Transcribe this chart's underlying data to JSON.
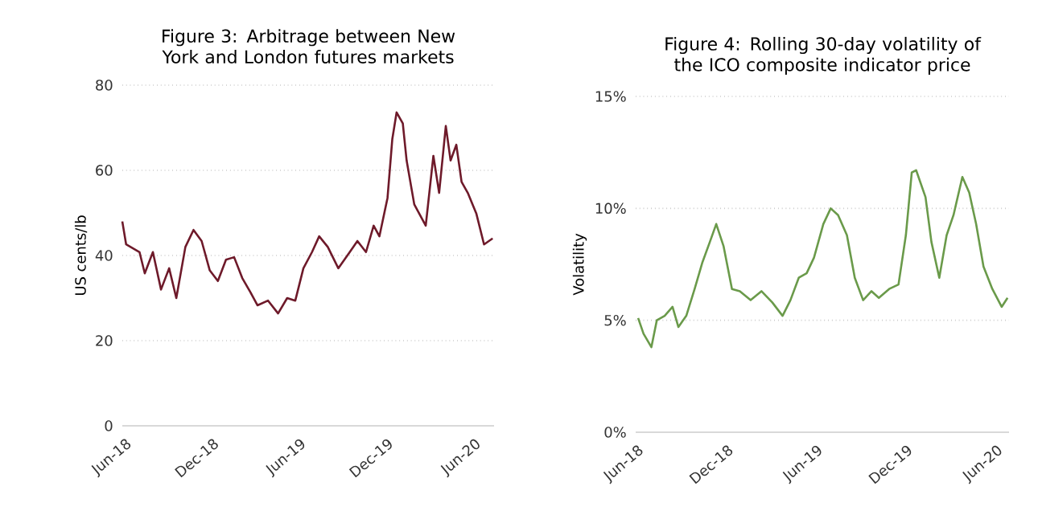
{
  "chart_data": [
    {
      "type": "line",
      "title": "Figure 3:  Arbitrage between New York and London futures markets",
      "ylabel": "US cents/lb",
      "xlim": [
        "2018-05-24",
        "2020-07-10"
      ],
      "ylim": [
        0,
        80
      ],
      "yticks": [
        0,
        20,
        40,
        60,
        80
      ],
      "xticks": [
        {
          "value": "2018-06-01",
          "label": "Jun-18"
        },
        {
          "value": "2018-12-01",
          "label": "Dec-18"
        },
        {
          "value": "2019-06-01",
          "label": "Jun-19"
        },
        {
          "value": "2019-12-01",
          "label": "Dec-19"
        },
        {
          "value": "2020-06-01",
          "label": "Jun-20"
        }
      ],
      "grid": "y",
      "series": [
        {
          "color": "#6e1a2a",
          "x": [
            "2018-05-24",
            "2018-06-01",
            "2018-06-29",
            "2018-07-10",
            "2018-07-27",
            "2018-08-13",
            "2018-08-30",
            "2018-09-14",
            "2018-10-03",
            "2018-10-20",
            "2018-11-06",
            "2018-11-23",
            "2018-12-10",
            "2018-12-27",
            "2019-01-13",
            "2019-01-30",
            "2019-02-16",
            "2019-03-03",
            "2019-03-25",
            "2019-04-15",
            "2019-05-04",
            "2019-05-21",
            "2019-06-07",
            "2019-06-25",
            "2019-07-10",
            "2019-07-28",
            "2019-08-19",
            "2019-09-12",
            "2019-09-28",
            "2019-10-16",
            "2019-11-01",
            "2019-11-13",
            "2019-11-30",
            "2019-12-10",
            "2019-12-19",
            "2020-01-01",
            "2020-01-09",
            "2020-01-25",
            "2020-02-18",
            "2020-03-05",
            "2020-03-17",
            "2020-03-31",
            "2020-04-10",
            "2020-04-22",
            "2020-05-03",
            "2020-05-16",
            "2020-06-03",
            "2020-06-19",
            "2020-07-07"
          ],
          "values": [
            48,
            42.6,
            40.8,
            35.8,
            40.8,
            32,
            37,
            30,
            42,
            46,
            43.4,
            36.5,
            34,
            39,
            39.6,
            34.7,
            31.4,
            28.3,
            29.4,
            26.4,
            30,
            29.4,
            37,
            40.8,
            44.5,
            42,
            37,
            40.8,
            43.4,
            40.8,
            47,
            44.5,
            53.5,
            67.3,
            73.6,
            71,
            62.3,
            52,
            47,
            63.4,
            54.7,
            70.4,
            62.3,
            66,
            57.3,
            54.7,
            49.8,
            42.6,
            44
          ]
        }
      ]
    },
    {
      "type": "line",
      "title": "Figure 4:  Rolling 30-day volatility of the ICO  composite indicator price",
      "ylabel": "Volatility",
      "xlim": [
        "2018-05-27",
        "2020-06-25"
      ],
      "ylim": [
        0,
        15
      ],
      "yticks": [
        {
          "value": 0,
          "label": "0%"
        },
        {
          "value": 5,
          "label": "5%"
        },
        {
          "value": 10,
          "label": "10%"
        },
        {
          "value": 15,
          "label": "15%"
        }
      ],
      "xticks": [
        {
          "value": "2018-06-01",
          "label": "Jun-18"
        },
        {
          "value": "2018-12-01",
          "label": "Dec-18"
        },
        {
          "value": "2019-06-01",
          "label": "Jun-19"
        },
        {
          "value": "2019-12-01",
          "label": "Dec-19"
        },
        {
          "value": "2020-06-01",
          "label": "Jun-20"
        }
      ],
      "grid": "y",
      "series": [
        {
          "color": "#6a9a4a",
          "x": [
            "2018-06-01",
            "2018-06-12",
            "2018-06-28",
            "2018-07-09",
            "2018-07-25",
            "2018-08-10",
            "2018-08-22",
            "2018-09-07",
            "2018-09-24",
            "2018-10-10",
            "2018-10-25",
            "2018-11-07",
            "2018-11-22",
            "2018-12-09",
            "2018-12-25",
            "2019-01-16",
            "2019-02-07",
            "2019-03-01",
            "2019-03-22",
            "2019-04-07",
            "2019-04-24",
            "2019-05-10",
            "2019-05-25",
            "2019-06-13",
            "2019-06-28",
            "2019-07-13",
            "2019-07-31",
            "2019-08-16",
            "2019-09-02",
            "2019-09-19",
            "2019-10-04",
            "2019-10-25",
            "2019-11-13",
            "2019-11-28",
            "2019-12-10",
            "2019-12-19",
            "2020-01-07",
            "2020-01-19",
            "2020-02-04",
            "2020-02-19",
            "2020-03-04",
            "2020-03-22",
            "2020-04-05",
            "2020-04-19",
            "2020-05-04",
            "2020-05-22",
            "2020-06-10",
            "2020-06-22"
          ],
          "values": [
            5.1,
            4.4,
            3.8,
            5,
            5.2,
            5.6,
            4.7,
            5.2,
            6.4,
            7.6,
            8.5,
            9.3,
            8.3,
            6.4,
            6.3,
            5.9,
            6.3,
            5.8,
            5.2,
            5.9,
            6.9,
            7.1,
            7.8,
            9.3,
            10,
            9.7,
            8.8,
            6.9,
            5.9,
            6.3,
            6,
            6.4,
            6.6,
            8.8,
            11.6,
            11.7,
            10.5,
            8.5,
            6.9,
            8.8,
            9.7,
            11.4,
            10.7,
            9.3,
            7.4,
            6.4,
            5.6,
            6
          ]
        }
      ]
    }
  ]
}
